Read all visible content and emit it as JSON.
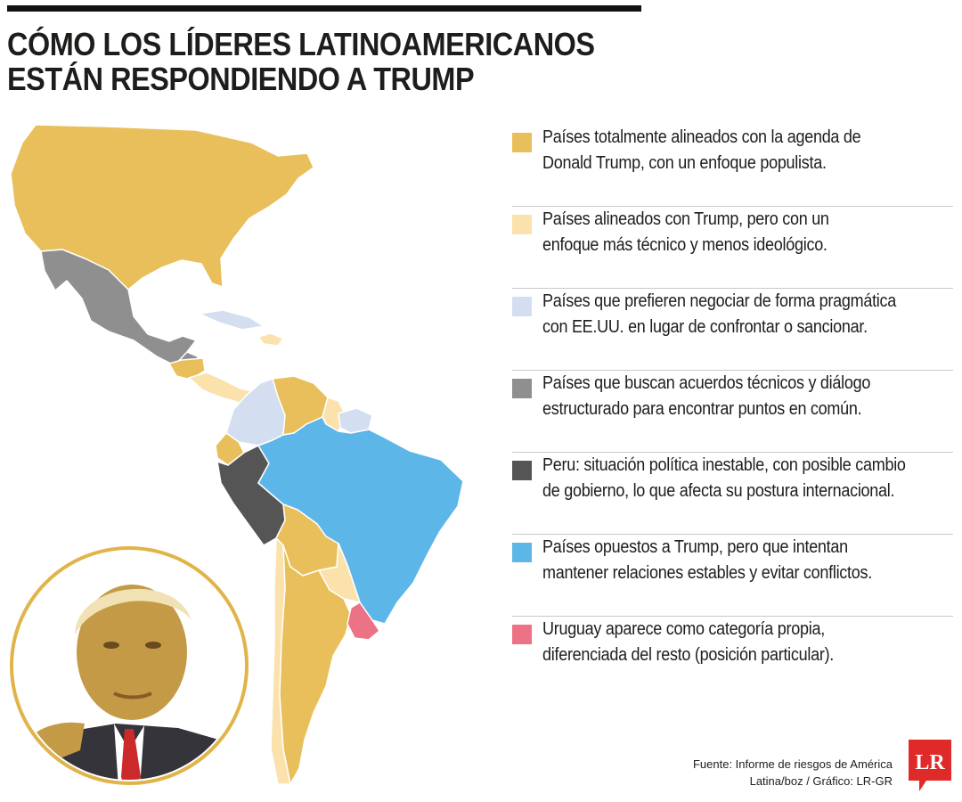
{
  "title": {
    "line1": "CÓMO LOS LÍDERES LATINOAMERICANOS",
    "line2": "ESTÁN RESPONDIENDO A TRUMP"
  },
  "colors": {
    "populist_aligned": "#e8bf5a",
    "technical_aligned": "#fbe1ac",
    "pragmatic": "#d3dff0",
    "technical_agreements": "#8f8f8f",
    "peru": "#555555",
    "opposed": "#5db6e8",
    "uruguay": "#ec7286",
    "brand_red": "#e02a2a"
  },
  "legend": [
    {
      "color": "#e8bf5a",
      "line1": "Países totalmente alineados con la agenda de",
      "line2": "Donald Trump, con un enfoque populista."
    },
    {
      "color": "#fbe1ac",
      "line1": "Países alineados con Trump, pero con un",
      "line2": "enfoque más técnico y menos ideológico."
    },
    {
      "color": "#d3dff0",
      "line1": "Países que prefieren negociar de forma pragmática",
      "line2": "con EE.UU. en lugar de confrontar o sancionar."
    },
    {
      "color": "#8f8f8f",
      "line1": "Países que buscan acuerdos técnicos y diálogo",
      "line2": "estructurado para encontrar puntos en común."
    },
    {
      "color": "#555555",
      "line1": "Peru: situación política inestable, con posible cambio",
      "line2": "de gobierno, lo que afecta su postura internacional."
    },
    {
      "color": "#5db6e8",
      "line1": "Países opuestos a Trump, pero que intentan",
      "line2": "mantener relaciones estables y evitar conflictos."
    },
    {
      "color": "#ec7286",
      "line1": "Uruguay aparece como categoría propia,",
      "line2": "diferenciada del resto (posición particular)."
    }
  ],
  "source": {
    "line1": "Fuente: Informe de riesgos de América",
    "line2": "Latina/boz / Gráfico: LR-GR"
  },
  "logo": {
    "text": "LR"
  },
  "map": {
    "countries": {
      "usa": "populist_aligned",
      "mexico": "technical_agreements",
      "guatemala": "technical_agreements",
      "honduras": "populist_aligned",
      "el_salvador": "populist_aligned",
      "costa_rica": "technical_aligned",
      "panama": "technical_aligned",
      "cuba": "pragmatic",
      "dominican_republic": "technical_aligned",
      "colombia": "pragmatic",
      "venezuela": "populist_aligned",
      "guyana": "technical_aligned",
      "suriname": "pragmatic",
      "french_guiana": "pragmatic",
      "ecuador": "populist_aligned",
      "peru": "peru",
      "brazil": "opposed",
      "bolivia": "populist_aligned",
      "paraguay": "technical_aligned",
      "chile": "technical_aligned",
      "argentina": "populist_aligned",
      "uruguay": "uruguay"
    }
  }
}
